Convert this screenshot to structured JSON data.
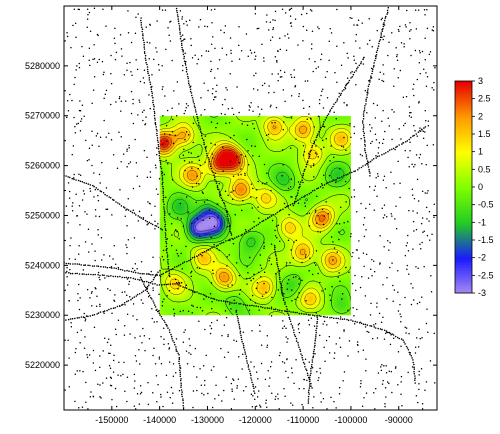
{
  "chart_data": {
    "type": "heatmap",
    "title": "",
    "xlabel": "",
    "ylabel": "",
    "x_ticks": [
      -150000,
      -140000,
      -130000,
      -120000,
      -110000,
      -100000,
      -90000
    ],
    "y_ticks": [
      5220000,
      5230000,
      5240000,
      5250000,
      5260000,
      5270000,
      5280000
    ],
    "x_tick_labels": [
      "-150000",
      "-140000",
      "-130000",
      "-120000",
      "-110000",
      "-100000",
      "-90000"
    ],
    "y_tick_labels": [
      "5220000",
      "5230000",
      "5240000",
      "5250000",
      "5260000",
      "5270000",
      "5280000"
    ],
    "xlim": [
      -160000,
      -82000
    ],
    "ylim": [
      5211000,
      5292000
    ],
    "grid_extent": {
      "x": [
        -140000,
        -100000
      ],
      "y": [
        5230000,
        5270000
      ]
    },
    "colorbar": {
      "position": "right",
      "range": [
        -3,
        3
      ],
      "ticks": [
        3,
        2.5,
        2,
        1.5,
        1,
        0.5,
        0,
        -0.5,
        -1,
        -1.5,
        -2,
        -2.5,
        -3
      ],
      "tick_labels": [
        "3",
        "2.5",
        "2",
        "1.5",
        "1",
        "0.5",
        "0",
        "-0.5",
        "-1",
        "-1.5",
        "-2",
        "-2.5",
        "-3"
      ],
      "colors": [
        "#a98cf0",
        "#1a1aff",
        "#22cc22",
        "#7fff00",
        "#ffff00",
        "#ff9900",
        "#e60000"
      ]
    },
    "anomalies": [
      {
        "x": -139000,
        "y": 5264500,
        "v": 3.0
      },
      {
        "x": -135000,
        "y": 5266000,
        "v": 2.0
      },
      {
        "x": -126000,
        "y": 5262000,
        "v": 2.6
      },
      {
        "x": -128000,
        "y": 5260000,
        "v": 2.2
      },
      {
        "x": -124500,
        "y": 5261000,
        "v": 2.4
      },
      {
        "x": -116000,
        "y": 5268000,
        "v": 1.8
      },
      {
        "x": -110000,
        "y": 5267000,
        "v": 2.0
      },
      {
        "x": -108000,
        "y": 5262500,
        "v": 1.5
      },
      {
        "x": -102000,
        "y": 5265500,
        "v": 1.4
      },
      {
        "x": -133000,
        "y": 5258000,
        "v": 1.9
      },
      {
        "x": -123000,
        "y": 5255000,
        "v": 2.3
      },
      {
        "x": -118000,
        "y": 5253500,
        "v": 1.3
      },
      {
        "x": -113000,
        "y": 5247500,
        "v": 1.6
      },
      {
        "x": -106000,
        "y": 5249500,
        "v": 2.4
      },
      {
        "x": -110000,
        "y": 5242500,
        "v": 2.0
      },
      {
        "x": -104000,
        "y": 5241000,
        "v": 1.7
      },
      {
        "x": -131000,
        "y": 5241500,
        "v": 1.5
      },
      {
        "x": -126500,
        "y": 5237500,
        "v": 2.1
      },
      {
        "x": -137000,
        "y": 5236500,
        "v": 1.3
      },
      {
        "x": -118000,
        "y": 5235500,
        "v": 1.8
      },
      {
        "x": -108500,
        "y": 5233000,
        "v": 1.4
      },
      {
        "x": -132000,
        "y": 5247500,
        "v": -2.9
      },
      {
        "x": -128500,
        "y": 5248500,
        "v": -2.7
      },
      {
        "x": -130000,
        "y": 5251000,
        "v": -1.2
      },
      {
        "x": -121000,
        "y": 5245000,
        "v": -1.1
      },
      {
        "x": -114000,
        "y": 5257000,
        "v": -0.9
      },
      {
        "x": -103000,
        "y": 5258000,
        "v": -0.8
      },
      {
        "x": -136000,
        "y": 5251500,
        "v": -0.9
      },
      {
        "x": -112000,
        "y": 5236000,
        "v": -0.8
      },
      {
        "x": -124000,
        "y": 5232500,
        "v": -0.7
      },
      {
        "x": -102000,
        "y": 5231500,
        "v": -0.7
      }
    ],
    "roads": [
      [
        [
          -160000,
          5240500
        ],
        [
          -150000,
          5239500
        ],
        [
          -145000,
          5238500
        ],
        [
          -140000,
          5238000
        ],
        [
          -136000,
          5240000
        ],
        [
          -131000,
          5242500
        ],
        [
          -127000,
          5244500
        ],
        [
          -123000,
          5246000
        ],
        [
          -119000,
          5248500
        ],
        [
          -113000,
          5252000
        ],
        [
          -106000,
          5256000
        ],
        [
          -99000,
          5259000
        ],
        [
          -94000,
          5262000
        ],
        [
          -89000,
          5264500
        ],
        [
          -84000,
          5268000
        ]
      ],
      [
        [
          -160000,
          5238500
        ],
        [
          -152000,
          5238000
        ],
        [
          -146000,
          5237500
        ],
        [
          -140000,
          5236000
        ],
        [
          -135000,
          5236500
        ]
      ],
      [
        [
          -144000,
          5237500
        ],
        [
          -141000,
          5232000
        ],
        [
          -138000,
          5227000
        ],
        [
          -136000,
          5222000
        ],
        [
          -135500,
          5216000
        ],
        [
          -135000,
          5211000
        ]
      ],
      [
        [
          -138000,
          5238000
        ],
        [
          -138500,
          5243000
        ],
        [
          -139000,
          5250000
        ],
        [
          -139500,
          5258000
        ],
        [
          -140500,
          5266000
        ],
        [
          -141500,
          5274000
        ],
        [
          -143000,
          5282000
        ],
        [
          -144000,
          5290000
        ]
      ],
      [
        [
          -136000,
          5236000
        ],
        [
          -128000,
          5233000
        ],
        [
          -118000,
          5231500
        ],
        [
          -108000,
          5230000
        ],
        [
          -100000,
          5229000
        ],
        [
          -93000,
          5227000
        ],
        [
          -89000,
          5225000
        ],
        [
          -87000,
          5221000
        ],
        [
          -86500,
          5216000
        ]
      ],
      [
        [
          -96000,
          5258000
        ],
        [
          -97000,
          5263000
        ],
        [
          -97500,
          5269000
        ],
        [
          -96500,
          5275000
        ],
        [
          -95000,
          5281000
        ],
        [
          -93500,
          5287000
        ],
        [
          -92000,
          5292000
        ]
      ],
      [
        [
          -125000,
          5246000
        ],
        [
          -126000,
          5251000
        ],
        [
          -128000,
          5256000
        ],
        [
          -130000,
          5262000
        ],
        [
          -132000,
          5269000
        ],
        [
          -134000,
          5277000
        ],
        [
          -135500,
          5285000
        ],
        [
          -136500,
          5292000
        ]
      ],
      [
        [
          -116000,
          5244000
        ],
        [
          -115000,
          5238000
        ],
        [
          -114000,
          5233000
        ],
        [
          -112000,
          5227000
        ],
        [
          -110000,
          5221000
        ],
        [
          -108000,
          5215000
        ]
      ],
      [
        [
          -112000,
          5252000
        ],
        [
          -110000,
          5258000
        ],
        [
          -108000,
          5264000
        ],
        [
          -105000,
          5270000
        ],
        [
          -101000,
          5276000
        ],
        [
          -97000,
          5282000
        ]
      ],
      [
        [
          -160000,
          5258000
        ],
        [
          -154000,
          5256000
        ],
        [
          -148000,
          5252000
        ],
        [
          -143000,
          5249000
        ],
        [
          -139000,
          5247000
        ]
      ],
      [
        [
          -140000,
          5239000
        ],
        [
          -143000,
          5235000
        ],
        [
          -148000,
          5232000
        ],
        [
          -154000,
          5230000
        ],
        [
          -160000,
          5229000
        ]
      ],
      [
        [
          -124000,
          5231000
        ],
        [
          -123000,
          5226000
        ],
        [
          -121500,
          5220000
        ],
        [
          -120000,
          5214000
        ]
      ],
      [
        [
          -107000,
          5230000
        ],
        [
          -107500,
          5224000
        ],
        [
          -108500,
          5218000
        ],
        [
          -109000,
          5212000
        ]
      ]
    ]
  }
}
